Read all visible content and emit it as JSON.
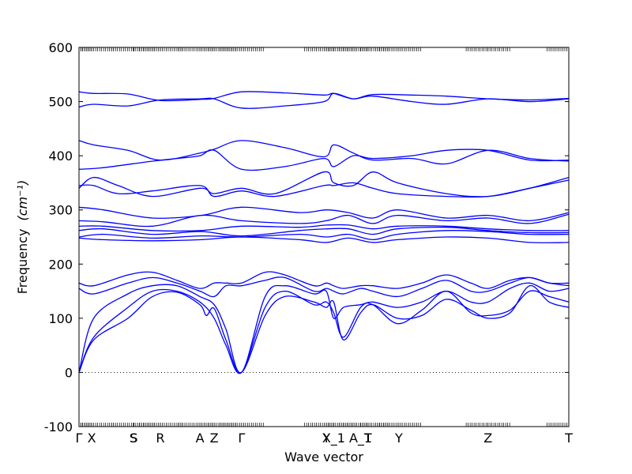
{
  "chart_data": {
    "type": "line",
    "title": "",
    "xlabel": "Wave vector",
    "ylabel": "Frequency",
    "ylabel_unit": "(cm⁻¹)",
    "ylim": [
      -100,
      600
    ],
    "yticks": [
      -100,
      0,
      100,
      200,
      300,
      400,
      500,
      600
    ],
    "xlim": [
      0,
      1
    ],
    "grid": false,
    "legend": "none",
    "series_color": "#0000ff",
    "zero_line": {
      "y": 0,
      "style": "dotted"
    },
    "xticks": [
      {
        "label": "Γ",
        "x": 0.0
      },
      {
        "label": "X",
        "x": 0.026
      },
      {
        "label": "S",
        "x": 0.111
      },
      {
        "label": "S",
        "x": 0.112
      },
      {
        "label": "R",
        "x": 0.166
      },
      {
        "label": "A",
        "x": 0.247
      },
      {
        "label": "Z",
        "x": 0.276
      },
      {
        "label": "Γ",
        "x": 0.332
      },
      {
        "label": "Y",
        "x": 0.505
      },
      {
        "label": "X_1",
        "x": 0.52
      },
      {
        "label": "A_1",
        "x": 0.575
      },
      {
        "label": "T",
        "x": 0.59
      },
      {
        "label": "Y",
        "x": 0.653
      },
      {
        "label": "Z",
        "x": 0.835
      },
      {
        "label": "T",
        "x": 1.0
      }
    ],
    "series": [
      {
        "x": [
          0,
          0.03,
          0.1,
          0.15,
          0.2,
          0.247,
          0.26,
          0.276,
          0.3,
          0.332,
          0.38,
          0.42,
          0.48,
          0.505,
          0.52,
          0.54,
          0.575,
          0.6,
          0.65,
          0.7,
          0.75,
          0.8,
          0.835,
          0.88,
          0.92,
          0.96,
          1.0
        ],
        "y": [
          0,
          60,
          100,
          140,
          148,
          125,
          105,
          118,
          60,
          0,
          105,
          140,
          130,
          120,
          130,
          60,
          110,
          125,
          100,
          105,
          135,
          115,
          100,
          110,
          160,
          130,
          120
        ]
      },
      {
        "x": [
          0,
          0.03,
          0.1,
          0.15,
          0.2,
          0.247,
          0.276,
          0.3,
          0.332,
          0.38,
          0.42,
          0.48,
          0.505,
          0.52,
          0.54,
          0.575,
          0.6,
          0.65,
          0.7,
          0.75,
          0.8,
          0.835,
          0.88,
          0.92,
          0.96,
          1.0
        ],
        "y": [
          0,
          65,
          120,
          150,
          150,
          130,
          100,
          50,
          0,
          120,
          150,
          125,
          130,
          110,
          65,
          120,
          125,
          90,
          115,
          150,
          110,
          105,
          115,
          150,
          140,
          130
        ]
      },
      {
        "x": [
          0,
          0.03,
          0.1,
          0.15,
          0.2,
          0.247,
          0.276,
          0.3,
          0.332,
          0.38,
          0.42,
          0.48,
          0.505,
          0.52,
          0.54,
          0.575,
          0.6,
          0.65,
          0.7,
          0.75,
          0.8,
          0.835,
          0.88,
          0.92,
          0.96,
          1.0
        ],
        "y": [
          0,
          100,
          145,
          160,
          160,
          140,
          125,
          80,
          0,
          140,
          160,
          145,
          150,
          100,
          120,
          125,
          130,
          120,
          130,
          150,
          130,
          130,
          155,
          165,
          150,
          155
        ]
      },
      {
        "x": [
          0,
          0.03,
          0.1,
          0.15,
          0.2,
          0.247,
          0.276,
          0.3,
          0.332,
          0.38,
          0.42,
          0.48,
          0.505,
          0.52,
          0.54,
          0.575,
          0.6,
          0.65,
          0.7,
          0.75,
          0.8,
          0.835,
          0.88,
          0.92,
          0.96,
          1.0
        ],
        "y": [
          155,
          145,
          165,
          175,
          165,
          150,
          140,
          160,
          160,
          170,
          175,
          150,
          155,
          150,
          145,
          155,
          150,
          140,
          155,
          170,
          150,
          150,
          165,
          175,
          165,
          160
        ]
      },
      {
        "x": [
          0,
          0.03,
          0.1,
          0.15,
          0.2,
          0.247,
          0.276,
          0.3,
          0.332,
          0.38,
          0.42,
          0.48,
          0.505,
          0.52,
          0.54,
          0.575,
          0.6,
          0.65,
          0.7,
          0.75,
          0.8,
          0.835,
          0.88,
          0.92,
          0.96,
          1.0
        ],
        "y": [
          165,
          160,
          180,
          185,
          170,
          155,
          165,
          165,
          165,
          185,
          180,
          160,
          165,
          160,
          155,
          160,
          160,
          155,
          165,
          180,
          165,
          155,
          170,
          175,
          165,
          165
        ]
      },
      {
        "x": [
          0,
          0.05,
          0.15,
          0.25,
          0.332,
          0.45,
          0.505,
          0.55,
          0.6,
          0.65,
          0.75,
          0.835,
          0.92,
          1.0
        ],
        "y": [
          248,
          245,
          243,
          245,
          250,
          245,
          240,
          248,
          240,
          245,
          250,
          248,
          240,
          240
        ]
      },
      {
        "x": [
          0,
          0.05,
          0.15,
          0.25,
          0.332,
          0.45,
          0.505,
          0.55,
          0.6,
          0.65,
          0.75,
          0.835,
          0.92,
          1.0
        ],
        "y": [
          250,
          255,
          248,
          252,
          250,
          255,
          250,
          255,
          245,
          255,
          262,
          260,
          255,
          255
        ]
      },
      {
        "x": [
          0,
          0.05,
          0.15,
          0.25,
          0.332,
          0.45,
          0.505,
          0.55,
          0.6,
          0.65,
          0.75,
          0.835,
          0.92,
          1.0
        ],
        "y": [
          262,
          265,
          255,
          260,
          252,
          262,
          265,
          265,
          255,
          265,
          268,
          262,
          258,
          258
        ]
      },
      {
        "x": [
          0,
          0.05,
          0.15,
          0.25,
          0.332,
          0.45,
          0.505,
          0.55,
          0.6,
          0.65,
          0.75,
          0.835,
          0.92,
          1.0
        ],
        "y": [
          270,
          270,
          262,
          262,
          270,
          268,
          272,
          272,
          265,
          270,
          270,
          265,
          262,
          262
        ]
      },
      {
        "x": [
          0,
          0.05,
          0.15,
          0.25,
          0.332,
          0.45,
          0.505,
          0.55,
          0.6,
          0.65,
          0.75,
          0.835,
          0.92,
          1.0
        ],
        "y": [
          280,
          278,
          270,
          290,
          280,
          275,
          280,
          290,
          275,
          290,
          280,
          285,
          275,
          292
        ]
      },
      {
        "x": [
          0,
          0.05,
          0.15,
          0.25,
          0.332,
          0.45,
          0.505,
          0.55,
          0.6,
          0.65,
          0.75,
          0.835,
          0.92,
          1.0
        ],
        "y": [
          305,
          300,
          285,
          290,
          305,
          295,
          300,
          295,
          285,
          300,
          285,
          290,
          280,
          295
        ]
      },
      {
        "x": [
          0,
          0.03,
          0.08,
          0.15,
          0.247,
          0.276,
          0.332,
          0.4,
          0.5,
          0.52,
          0.56,
          0.6,
          0.65,
          0.75,
          0.835,
          0.92,
          1.0
        ],
        "y": [
          340,
          360,
          345,
          325,
          340,
          330,
          340,
          330,
          370,
          350,
          345,
          370,
          350,
          330,
          325,
          340,
          360
        ]
      },
      {
        "x": [
          0,
          0.03,
          0.08,
          0.15,
          0.247,
          0.276,
          0.332,
          0.4,
          0.5,
          0.52,
          0.56,
          0.6,
          0.65,
          0.75,
          0.835,
          0.92,
          1.0
        ],
        "y": [
          345,
          345,
          330,
          335,
          345,
          325,
          335,
          325,
          345,
          345,
          350,
          340,
          330,
          325,
          325,
          340,
          355
        ]
      },
      {
        "x": [
          0,
          0.05,
          0.15,
          0.2,
          0.247,
          0.276,
          0.332,
          0.42,
          0.5,
          0.52,
          0.56,
          0.6,
          0.68,
          0.75,
          0.835,
          0.92,
          1.0
        ],
        "y": [
          375,
          378,
          390,
          395,
          400,
          410,
          375,
          380,
          395,
          380,
          400,
          395,
          400,
          410,
          410,
          392,
          392
        ]
      },
      {
        "x": [
          0,
          0.03,
          0.1,
          0.166,
          0.247,
          0.276,
          0.332,
          0.42,
          0.5,
          0.52,
          0.56,
          0.6,
          0.68,
          0.75,
          0.835,
          0.92,
          1.0
        ],
        "y": [
          428,
          420,
          410,
          392,
          405,
          412,
          428,
          415,
          398,
          420,
          405,
          392,
          395,
          385,
          410,
          395,
          390
        ]
      },
      {
        "x": [
          0,
          0.03,
          0.1,
          0.166,
          0.247,
          0.276,
          0.332,
          0.42,
          0.5,
          0.52,
          0.56,
          0.6,
          0.68,
          0.75,
          0.835,
          0.92,
          1.0
        ],
        "y": [
          490,
          495,
          492,
          503,
          505,
          505,
          488,
          492,
          500,
          515,
          505,
          510,
          500,
          495,
          505,
          500,
          505
        ]
      },
      {
        "x": [
          0,
          0.03,
          0.1,
          0.166,
          0.247,
          0.276,
          0.332,
          0.42,
          0.5,
          0.52,
          0.56,
          0.6,
          0.68,
          0.75,
          0.835,
          0.92,
          1.0
        ],
        "y": [
          518,
          515,
          514,
          502,
          504,
          506,
          518,
          516,
          512,
          515,
          505,
          513,
          512,
          510,
          505,
          503,
          506
        ]
      }
    ]
  }
}
